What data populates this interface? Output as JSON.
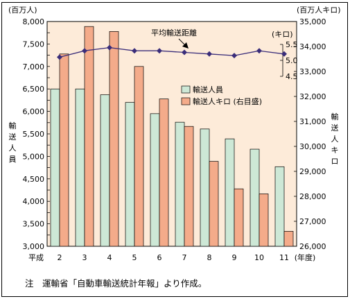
{
  "chart_data": {
    "type": "bar",
    "categories_prefix": "平成",
    "categories": [
      "2",
      "3",
      "4",
      "5",
      "6",
      "7",
      "8",
      "9",
      "10",
      "11"
    ],
    "x_unit_label": "(年度)",
    "series": [
      {
        "name": "輸送人員",
        "axis": "left",
        "color": "#cde8d6",
        "values": [
          6500,
          6500,
          6370,
          6200,
          5950,
          5760,
          5610,
          5390,
          5160,
          4770
        ]
      },
      {
        "name": "輸送人キロ (右目盛)",
        "axis": "right",
        "color": "#f4ab8a",
        "values": [
          33700,
          34800,
          34600,
          33200,
          31900,
          30800,
          29400,
          28300,
          28100,
          26600
        ]
      },
      {
        "name": "平均輸送距離",
        "axis": "inner",
        "color": "#3a2d7a",
        "values": [
          5.1,
          5.3,
          5.4,
          5.3,
          5.3,
          5.25,
          5.2,
          5.15,
          5.3,
          5.2
        ]
      }
    ],
    "left_axis": {
      "unit": "(百万人)",
      "label": "輸送人員",
      "min": 3000,
      "max": 8000,
      "step": 250,
      "ticks": [
        "3,000",
        "3,250",
        "3,500",
        "3,750",
        "4,000",
        "4,250",
        "4,500",
        "4,750",
        "5,000",
        "5,250",
        "5,500",
        "5,750",
        "6,000",
        "6,250",
        "6,500",
        "6,750",
        "7,000",
        "7,250",
        "7,500",
        "7,750",
        "8,000"
      ]
    },
    "right_axis": {
      "unit": "(百万人キロ)",
      "label": "輸送人キロ",
      "min": 26000,
      "max": 35000,
      "step": 1000,
      "ticks": [
        "26,000",
        "27,000",
        "28,000",
        "29,000",
        "30,000",
        "31,000",
        "32,000",
        "33,000",
        "34,000",
        "35,000"
      ]
    },
    "inner_axis": {
      "unit": "(キロ)",
      "min": 4.5,
      "max": 5.5,
      "ticks": [
        "5.5",
        "5.0",
        "4.5"
      ]
    },
    "annotation": "平均輸送距離",
    "legend": [
      "輸送人員",
      "輸送人キロ (右目盛)"
    ],
    "legend_position": "right-middle",
    "grid": false,
    "plot_background": "#fdebd9"
  },
  "note": "注　運輸省「自動車輸送統計年報」より作成。"
}
